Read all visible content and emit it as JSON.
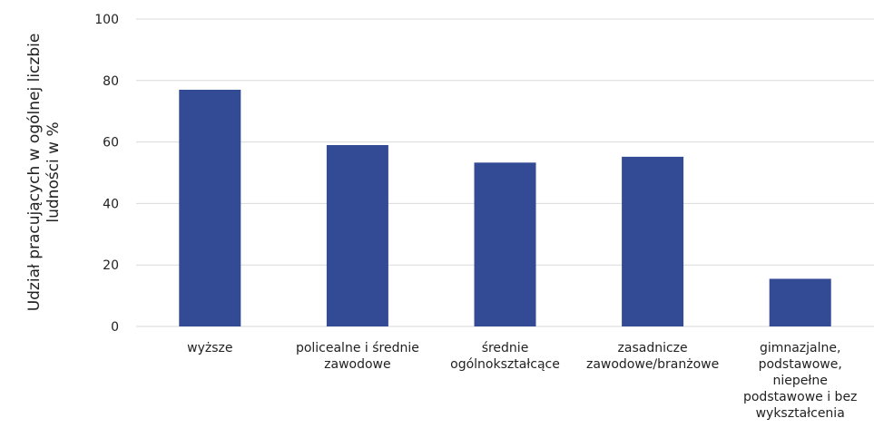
{
  "chart_data": {
    "type": "bar",
    "categories": [
      [
        "wyższe"
      ],
      [
        "policealne i średnie",
        "zawodowe"
      ],
      [
        "średnie",
        "ogólnokształcące"
      ],
      [
        "zasadnicze",
        "zawodowe/branżowe"
      ],
      [
        "gimnazjalne,",
        "podstawowe,",
        "niepełne",
        "podstawowe i bez",
        "wykształcenia"
      ]
    ],
    "values": [
      77,
      59,
      53.3,
      55.2,
      15.5
    ],
    "ylabel": [
      "Udział pracujących w ogólnej liczbie",
      "ludności w %"
    ],
    "ylim": [
      0,
      100
    ],
    "yticks": [
      0,
      20,
      40,
      60,
      80,
      100
    ],
    "grid": true,
    "legend": "none",
    "bar_color": "#334a94"
  }
}
